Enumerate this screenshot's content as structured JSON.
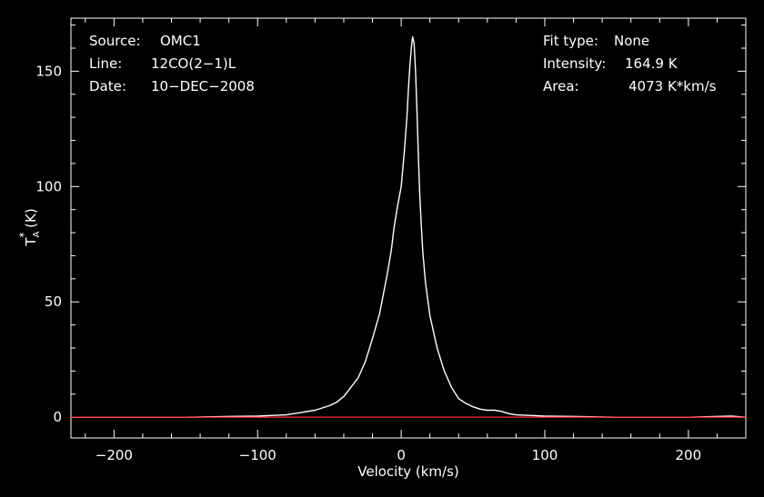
{
  "info_left": [
    {
      "label": "Source:",
      "value": "OMC1"
    },
    {
      "label": "Line:",
      "value": "12CO(2−1)L"
    },
    {
      "label": "Date:",
      "value": "10−DEC−2008"
    }
  ],
  "info_right": [
    {
      "label": "Fit type:",
      "value": "None"
    },
    {
      "label": "Intensity:",
      "value": "164.9 K"
    },
    {
      "label": "Area:",
      "value": "4073 K*km/s"
    }
  ],
  "chart_data": {
    "type": "line",
    "xlabel": "Velocity (km/s)",
    "ylabel_main": "T",
    "ylabel_sub": "A",
    "ylabel_sup": "*",
    "ylabel_unit": " (K)",
    "xlim": [
      -230,
      240
    ],
    "ylim": [
      -9,
      173
    ],
    "xticks": [
      -200,
      -100,
      0,
      100,
      200
    ],
    "xtick_labels": [
      "−200",
      "−100",
      "0",
      "100",
      "200"
    ],
    "yticks": [
      0,
      50,
      100,
      150
    ],
    "ytick_labels": [
      "0",
      "50",
      "100",
      "150"
    ],
    "grid": false,
    "colors": {
      "background": "#000000",
      "axes": "#ffffff",
      "spectrum": "#ffffff",
      "baseline": "#ff3030"
    },
    "series": [
      {
        "x": [
          -230,
          -150,
          -100,
          -80,
          -70,
          -60,
          -50,
          -45,
          -40,
          -35,
          -30,
          -25,
          -20,
          -15,
          -10,
          -7,
          -5,
          -3,
          0,
          2,
          4,
          5,
          6,
          7,
          8,
          9,
          10,
          11,
          12,
          13,
          14,
          15,
          17,
          20,
          25,
          30,
          35,
          40,
          45,
          50,
          55,
          60,
          65,
          70,
          75,
          80,
          100,
          150,
          200,
          230,
          240
        ],
        "y": [
          0,
          0,
          0.5,
          1,
          2,
          3,
          5,
          6.5,
          9,
          13,
          17,
          24,
          34,
          45,
          61,
          72,
          82,
          90,
          100,
          114,
          130,
          142,
          152,
          160,
          164.9,
          162,
          150,
          132,
          112,
          96,
          83,
          72,
          58,
          44,
          30,
          20,
          13,
          8,
          6,
          4.5,
          3.5,
          3,
          3,
          2.5,
          1.5,
          1,
          0.5,
          0,
          0,
          0.5,
          0
        ]
      },
      {
        "x": [
          -230,
          240
        ],
        "y": [
          0,
          0
        ]
      }
    ]
  }
}
